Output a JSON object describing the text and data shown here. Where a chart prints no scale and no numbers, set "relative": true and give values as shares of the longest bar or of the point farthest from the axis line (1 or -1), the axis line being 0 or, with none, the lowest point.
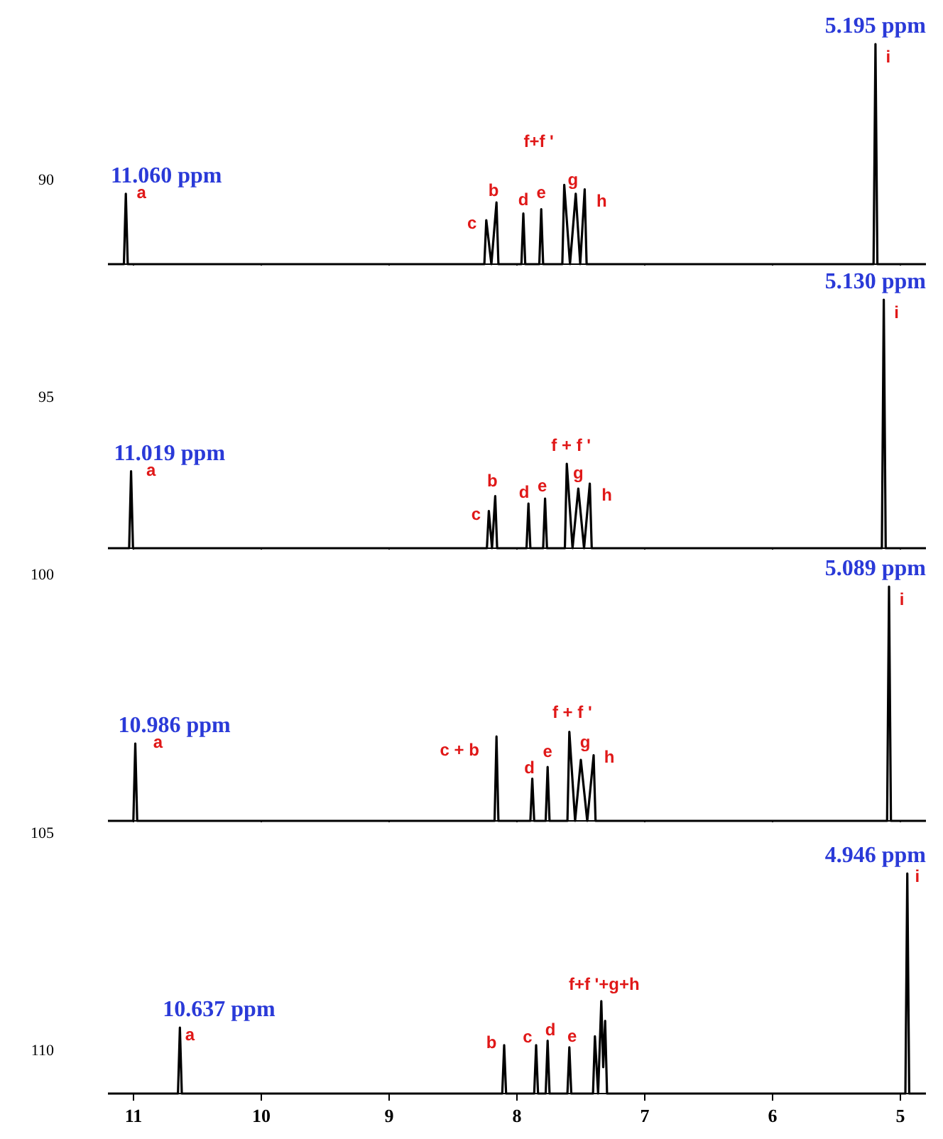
{
  "chart_data": [
    {
      "type": "line",
      "relative": true,
      "xlim": [
        11.2,
        4.8
      ],
      "xticks": [
        11,
        10,
        9,
        8,
        7,
        6,
        5
      ],
      "tick_labels": false,
      "x": [
        11.2,
        11.075,
        11.06,
        11.045,
        8.255,
        8.24,
        8.2,
        8.16,
        8.145,
        7.965,
        7.95,
        7.935,
        7.825,
        7.81,
        7.795,
        7.645,
        7.63,
        7.585,
        7.54,
        7.505,
        7.47,
        7.455,
        5.21,
        5.195,
        5.18,
        4.8
      ],
      "series": [
        {
          "color": "#000000",
          "values": [
            0,
            0,
            0.32,
            0,
            0,
            0.2,
            0,
            0.28,
            0,
            0,
            0.23,
            0,
            0,
            0.25,
            0,
            0,
            0.36,
            0,
            0.32,
            0,
            0.34,
            0,
            0,
            1,
            0,
            0
          ]
        }
      ],
      "annotations": [
        {
          "text": "11.060 ppm",
          "x": 11.06,
          "y": 0.32
        },
        {
          "text": "5.195 ppm",
          "x": 5.195,
          "y": 1
        },
        {
          "text": "a",
          "x": 11.06,
          "y": 0.32
        },
        {
          "text": "c",
          "x": 8.24,
          "y": 0.2
        },
        {
          "text": "b",
          "x": 8.16,
          "y": 0.28
        },
        {
          "text": "d",
          "x": 7.95,
          "y": 0.23
        },
        {
          "text": "e",
          "x": 7.81,
          "y": 0.25
        },
        {
          "text": "f+f '",
          "x": 7.63,
          "y": 0.36
        },
        {
          "text": "g",
          "x": 7.54,
          "y": 0.32
        },
        {
          "text": "h",
          "x": 7.47,
          "y": 0.34
        },
        {
          "text": "i",
          "x": 5.195,
          "y": 1
        },
        "90"
      ]
    },
    {
      "type": "line",
      "relative": true,
      "xlim": [
        11.2,
        4.8
      ],
      "xticks": [
        11,
        10,
        9,
        8,
        7,
        6,
        5
      ],
      "tick_labels": false,
      "x": [
        11.2,
        11.034,
        11.019,
        11.004,
        8.235,
        8.22,
        8.195,
        8.17,
        8.155,
        7.925,
        7.91,
        7.895,
        7.795,
        7.78,
        7.765,
        7.625,
        7.61,
        7.565,
        7.52,
        7.475,
        7.43,
        7.415,
        5.145,
        5.13,
        5.115,
        4.8
      ],
      "series": [
        {
          "color": "#000000",
          "values": [
            0,
            0,
            0.31,
            0,
            0,
            0.15,
            0,
            0.21,
            0,
            0,
            0.18,
            0,
            0,
            0.2,
            0,
            0,
            0.34,
            0,
            0.24,
            0,
            0.26,
            0,
            0,
            1,
            0,
            0
          ]
        }
      ],
      "annotations": [
        {
          "text": "11.019 ppm",
          "x": 11.019,
          "y": 0.31
        },
        {
          "text": "5.130 ppm",
          "x": 5.13,
          "y": 1
        },
        {
          "text": "a",
          "x": 11.019,
          "y": 0.31
        },
        {
          "text": "c",
          "x": 8.22,
          "y": 0.15
        },
        {
          "text": "b",
          "x": 8.17,
          "y": 0.21
        },
        {
          "text": "d",
          "x": 7.91,
          "y": 0.18
        },
        {
          "text": "e",
          "x": 7.78,
          "y": 0.2
        },
        {
          "text": "f + f '",
          "x": 7.61,
          "y": 0.34
        },
        {
          "text": "g",
          "x": 7.52,
          "y": 0.24
        },
        {
          "text": "h",
          "x": 7.43,
          "y": 0.26
        },
        {
          "text": "i",
          "x": 5.13,
          "y": 1
        },
        "95"
      ]
    },
    {
      "type": "line",
      "relative": true,
      "xlim": [
        11.2,
        4.8
      ],
      "xticks": [
        11,
        10,
        9,
        8,
        7,
        6,
        5
      ],
      "tick_labels": false,
      "x": [
        11.2,
        11.001,
        10.986,
        10.971,
        8.175,
        8.16,
        8.145,
        7.895,
        7.88,
        7.865,
        7.775,
        7.76,
        7.745,
        7.605,
        7.59,
        7.545,
        7.5,
        7.45,
        7.4,
        7.385,
        5.104,
        5.089,
        5.074,
        4.8
      ],
      "series": [
        {
          "color": "#000000",
          "values": [
            0,
            0,
            0.33,
            0,
            0,
            0.36,
            0,
            0,
            0.18,
            0,
            0,
            0.23,
            0,
            0,
            0.38,
            0,
            0.26,
            0,
            0.28,
            0,
            0,
            1,
            0,
            0
          ]
        }
      ],
      "annotations": [
        {
          "text": "10.986 ppm",
          "x": 10.986,
          "y": 0.33
        },
        {
          "text": "5.089 ppm",
          "x": 5.089,
          "y": 1
        },
        {
          "text": "a",
          "x": 10.986,
          "y": 0.33
        },
        {
          "text": "c + b",
          "x": 8.16,
          "y": 0.36
        },
        {
          "text": "d",
          "x": 7.88,
          "y": 0.18
        },
        {
          "text": "e",
          "x": 7.76,
          "y": 0.23
        },
        {
          "text": "f + f '",
          "x": 7.59,
          "y": 0.38
        },
        {
          "text": "g",
          "x": 7.5,
          "y": 0.26
        },
        {
          "text": "h",
          "x": 7.4,
          "y": 0.28
        },
        {
          "text": "i",
          "x": 5.089,
          "y": 1
        },
        "100",
        "105"
      ]
    },
    {
      "type": "line",
      "relative": true,
      "xlim": [
        11.2,
        4.8
      ],
      "xticks": [
        11,
        10,
        9,
        8,
        7,
        6,
        5
      ],
      "tick_labels": "x",
      "x": [
        11.2,
        10.652,
        10.637,
        10.622,
        8.115,
        8.1,
        8.085,
        7.865,
        7.85,
        7.835,
        7.775,
        7.76,
        7.745,
        7.605,
        7.59,
        7.575,
        7.405,
        7.39,
        7.365,
        7.34,
        7.325,
        7.31,
        7.295,
        4.961,
        4.946,
        4.931,
        4.8
      ],
      "series": [
        {
          "color": "#000000",
          "values": [
            0,
            0,
            0.3,
            0,
            0,
            0.22,
            0,
            0,
            0.22,
            0,
            0,
            0.24,
            0,
            0,
            0.21,
            0,
            0,
            0.26,
            0,
            0.42,
            0.12,
            0.33,
            0,
            0,
            1,
            0,
            0
          ]
        }
      ],
      "annotations": [
        {
          "text": "10.637 ppm",
          "x": 10.637,
          "y": 0.3
        },
        {
          "text": "4.946 ppm",
          "x": 4.946,
          "y": 1
        },
        {
          "text": "a",
          "x": 10.637,
          "y": 0.3
        },
        {
          "text": "b",
          "x": 8.1,
          "y": 0.22
        },
        {
          "text": "c",
          "x": 7.85,
          "y": 0.22
        },
        {
          "text": "d",
          "x": 7.76,
          "y": 0.24
        },
        {
          "text": "e",
          "x": 7.59,
          "y": 0.21
        },
        {
          "text": "f+f '+g+h",
          "x": 7.34,
          "y": 0.42
        },
        {
          "text": "i",
          "x": 4.946,
          "y": 1
        },
        "110"
      ]
    }
  ]
}
